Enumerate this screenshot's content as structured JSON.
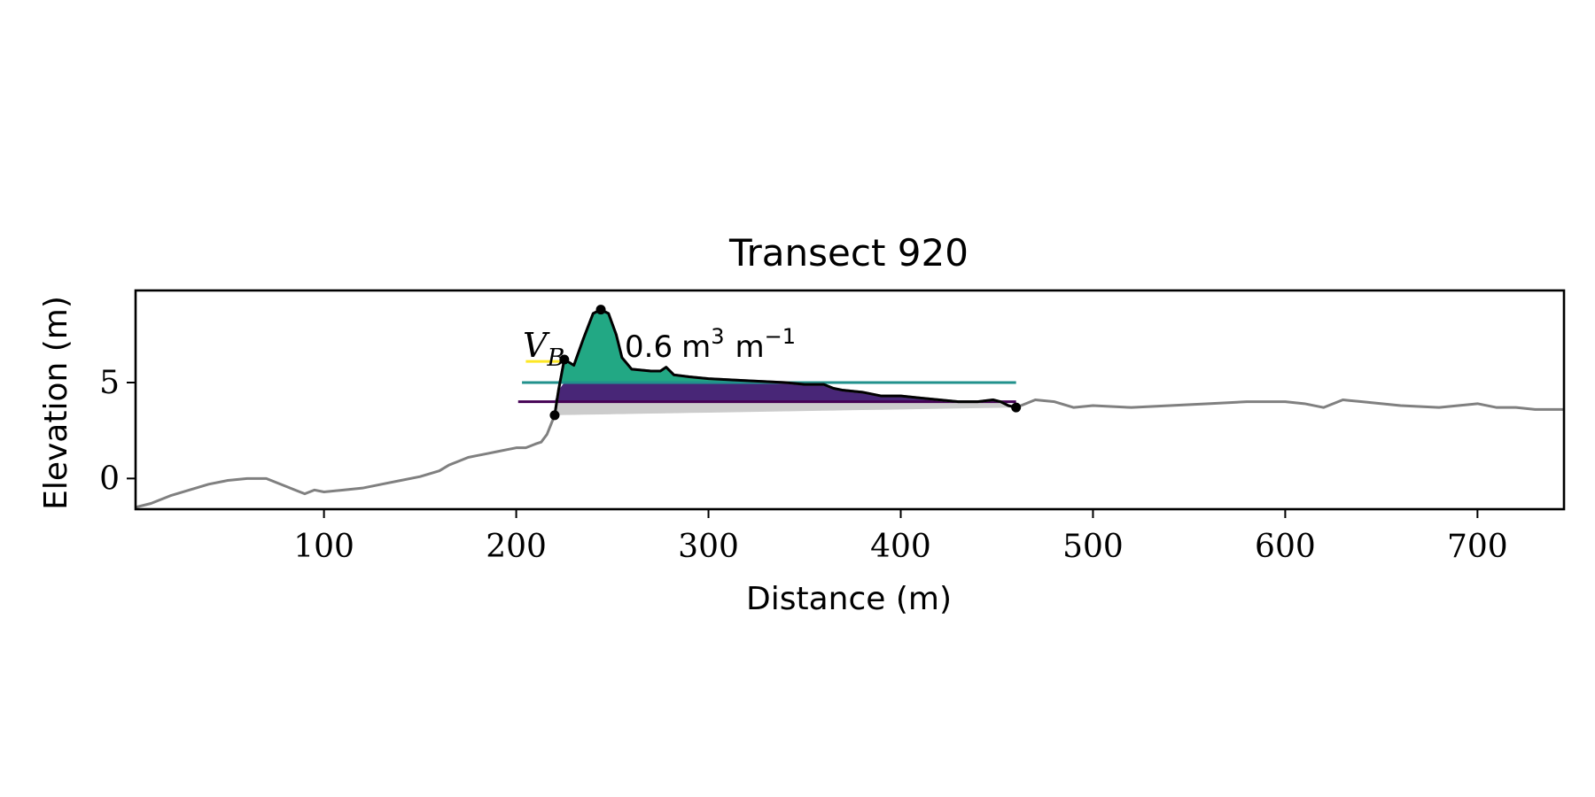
{
  "chart_data": {
    "type": "line",
    "title": "Transect 920",
    "xlabel": "Distance (m)",
    "ylabel": "Elevation (m)",
    "xlim": [
      2,
      745
    ],
    "ylim": [
      -1.6,
      9.8
    ],
    "xticks": [
      100,
      200,
      300,
      400,
      500,
      600,
      700
    ],
    "yticks": [
      0,
      5
    ],
    "grid": false,
    "annotation": {
      "symbol": "V",
      "subscript": "B",
      "value": "0.6",
      "unit_base": "m",
      "unit_exp": "3",
      "unit_rate": "m",
      "unit_rate_exp": "−1"
    },
    "colors": {
      "profile": "#808080",
      "dune": "#000000",
      "volume_fill": "#22a884",
      "lower_fill": "#482677",
      "base_fill": "#cccccc",
      "level_high": "#fde725",
      "level_mid": "#21918c",
      "level_low": "#440154"
    },
    "levels": [
      {
        "elevation": 6.1,
        "x_start": 205,
        "x_end": 225,
        "color_key": "level_high"
      },
      {
        "elevation": 5.0,
        "x_start": 203,
        "x_end": 460,
        "color_key": "level_mid"
      },
      {
        "elevation": 4.0,
        "x_start": 201,
        "x_end": 460,
        "color_key": "level_low"
      }
    ],
    "series": [
      {
        "x": [
          2,
          10,
          20,
          30,
          40,
          50,
          60,
          70,
          80,
          85,
          90,
          95,
          100,
          110,
          120,
          130,
          140,
          150,
          160,
          165,
          170,
          175,
          180,
          185,
          190,
          195,
          200,
          205,
          210,
          213,
          216,
          218,
          220,
          222,
          225,
          230,
          235,
          240,
          244,
          248,
          252,
          255,
          260,
          270,
          275,
          278,
          282,
          290,
          300,
          320,
          340,
          350,
          360,
          365,
          370,
          380,
          390,
          400,
          410,
          420,
          430,
          440,
          448,
          452,
          456,
          460,
          465,
          470,
          480,
          490,
          500,
          520,
          540,
          560,
          580,
          600,
          610,
          620,
          630,
          640,
          660,
          680,
          690,
          700,
          710,
          720,
          730,
          745
        ],
        "y": [
          -1.5,
          -1.3,
          -0.9,
          -0.6,
          -0.3,
          -0.1,
          0,
          0,
          -0.4,
          -0.6,
          -0.8,
          -0.6,
          -0.7,
          -0.6,
          -0.5,
          -0.3,
          -0.1,
          0.1,
          0.4,
          0.7,
          0.9,
          1.1,
          1.2,
          1.3,
          1.4,
          1.5,
          1.6,
          1.6,
          1.8,
          1.9,
          2.3,
          2.8,
          3.3,
          4.6,
          6.2,
          5.9,
          7.3,
          8.6,
          8.8,
          8.6,
          7.5,
          6.3,
          5.7,
          5.6,
          5.6,
          5.8,
          5.4,
          5.3,
          5.2,
          5.1,
          5.0,
          4.9,
          4.9,
          4.7,
          4.6,
          4.5,
          4.3,
          4.3,
          4.2,
          4.1,
          4.0,
          4.0,
          4.1,
          4.0,
          3.8,
          3.7,
          3.9,
          4.1,
          4.0,
          3.7,
          3.8,
          3.7,
          3.8,
          3.9,
          4.0,
          4.0,
          3.9,
          3.7,
          4.1,
          4.0,
          3.8,
          3.7,
          3.8,
          3.9,
          3.7,
          3.7,
          3.6,
          3.6
        ]
      },
      {
        "x": [
          220,
          222,
          225,
          230,
          235,
          240,
          244,
          248,
          252,
          255,
          260,
          270,
          275,
          278,
          282,
          290,
          300,
          320,
          340,
          350,
          360,
          365,
          370,
          380,
          390,
          400,
          410,
          420,
          430,
          440,
          448,
          452,
          456,
          460
        ],
        "y": [
          3.3,
          4.6,
          6.2,
          5.9,
          7.3,
          8.6,
          8.8,
          8.6,
          7.5,
          6.3,
          5.7,
          5.6,
          5.6,
          5.8,
          5.4,
          5.3,
          5.2,
          5.1,
          5.0,
          4.9,
          4.9,
          4.7,
          4.6,
          4.5,
          4.3,
          4.3,
          4.2,
          4.1,
          4.0,
          4.0,
          4.1,
          4.0,
          3.8,
          3.7
        ]
      }
    ],
    "markers": [
      {
        "x": 220,
        "y": 3.3
      },
      {
        "x": 225,
        "y": 6.2
      },
      {
        "x": 244,
        "y": 8.8
      },
      {
        "x": 460,
        "y": 3.7
      }
    ]
  }
}
